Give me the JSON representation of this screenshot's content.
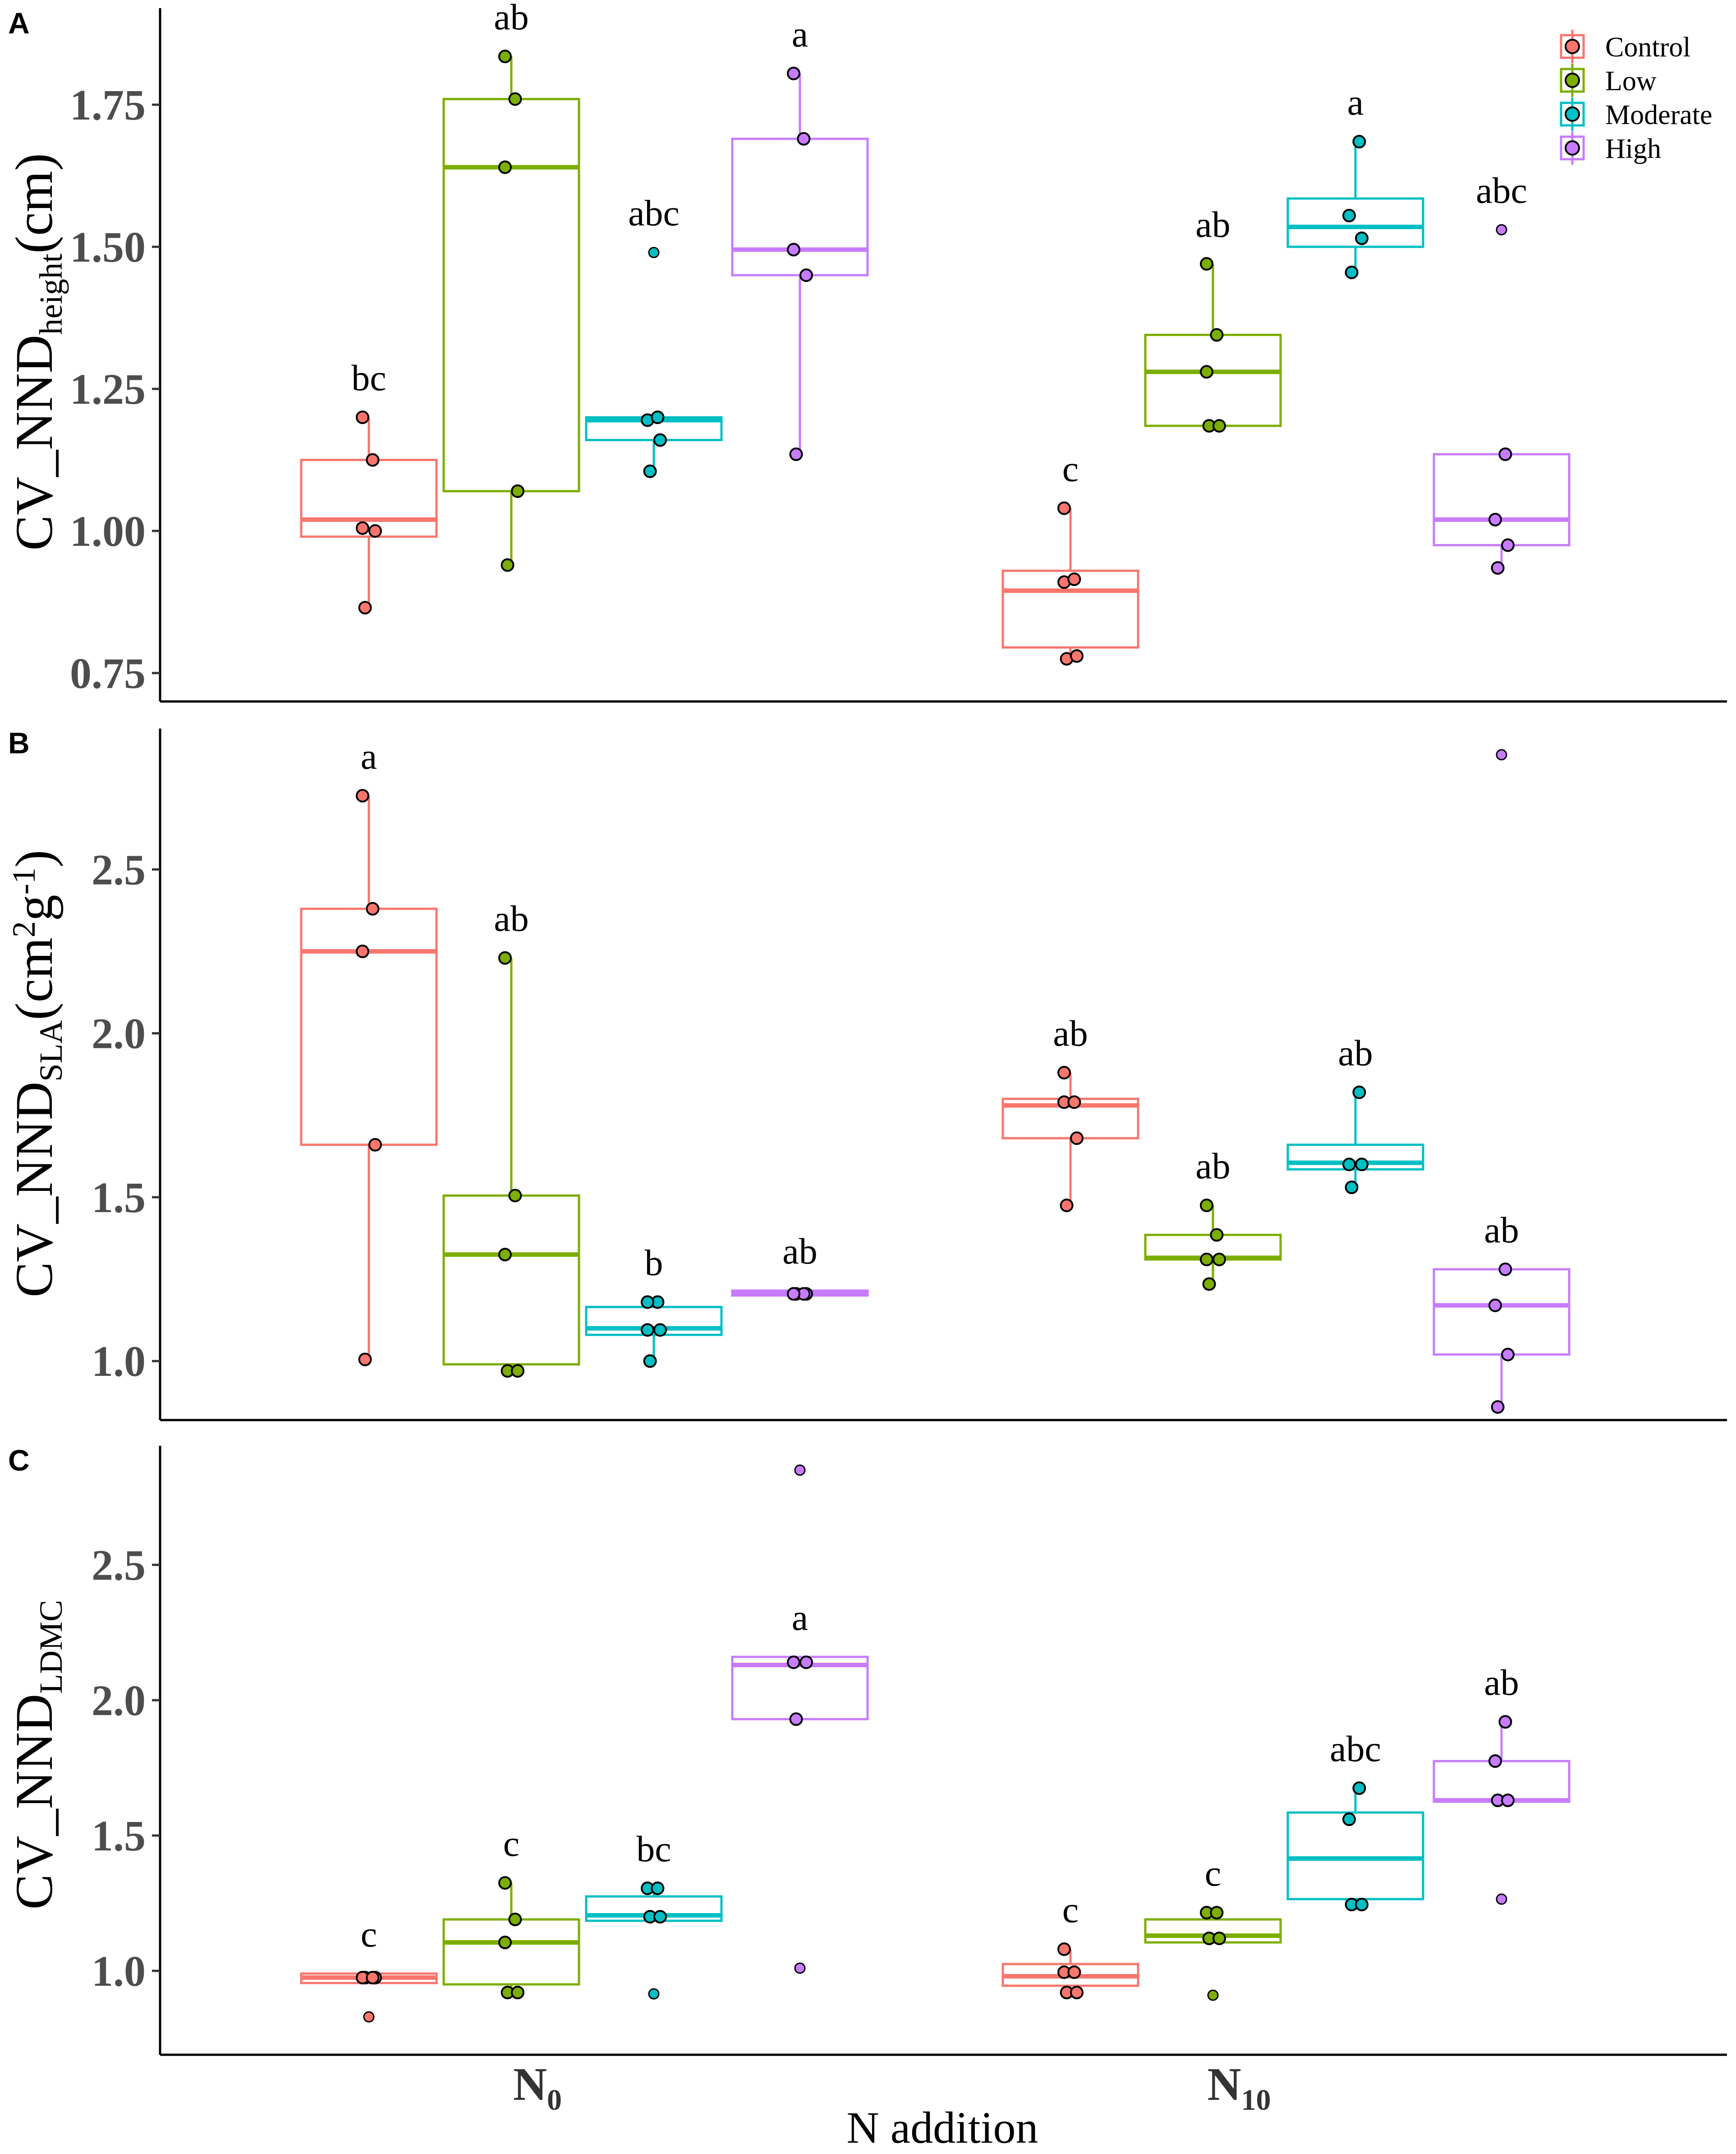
{
  "chart_data": {
    "type": "box",
    "x_title": "N addition",
    "groups": [
      {
        "base": "N",
        "sub": "0"
      },
      {
        "base": "N",
        "sub": "10"
      }
    ],
    "legend": [
      {
        "name": "Control",
        "color": "#F8766D"
      },
      {
        "name": "Low",
        "color": "#7CAE00"
      },
      {
        "name": "Moderate",
        "color": "#00BFC4"
      },
      {
        "name": "High",
        "color": "#C77CFF"
      }
    ],
    "panels": [
      {
        "id": "A",
        "ylabel_main": "CV_NND",
        "ylabel_sub": "height",
        "ylabel_unit": "(cm)",
        "ylim": [
          0.7,
          1.92
        ],
        "ticks": [
          0.75,
          1.0,
          1.25,
          1.5,
          1.75
        ],
        "tick_labels": [
          "0.75",
          "1.00",
          "1.25",
          "1.50",
          "1.75"
        ],
        "boxes": [
          {
            "group": 0,
            "series": 0,
            "q1": 0.99,
            "median": 1.02,
            "q3": 1.125,
            "wlo": 0.865,
            "whi": 1.2,
            "points": [
              0.865,
              1.0,
              1.005,
              1.125,
              1.2
            ],
            "outliers": [],
            "letter": "bc"
          },
          {
            "group": 0,
            "series": 1,
            "q1": 1.07,
            "median": 1.64,
            "q3": 1.76,
            "wlo": 0.94,
            "whi": 1.835,
            "points": [
              0.94,
              1.07,
              1.64,
              1.76,
              1.835
            ],
            "outliers": [],
            "letter": "ab"
          },
          {
            "group": 0,
            "series": 2,
            "q1": 1.16,
            "median": 1.195,
            "q3": 1.2,
            "wlo": 1.105,
            "whi": 1.2,
            "points": [
              1.105,
              1.16,
              1.195,
              1.2
            ],
            "outliers": [
              1.49
            ],
            "letter": "abc"
          },
          {
            "group": 0,
            "series": 3,
            "q1": 1.45,
            "median": 1.495,
            "q3": 1.69,
            "wlo": 1.135,
            "whi": 1.805,
            "points": [
              1.135,
              1.45,
              1.495,
              1.69,
              1.805
            ],
            "outliers": [],
            "letter": "a"
          },
          {
            "group": 1,
            "series": 0,
            "q1": 0.795,
            "median": 0.895,
            "q3": 0.93,
            "wlo": 0.775,
            "whi": 1.04,
            "points": [
              0.775,
              0.78,
              0.91,
              0.915,
              1.04
            ],
            "outliers": [],
            "letter": "c"
          },
          {
            "group": 1,
            "series": 1,
            "q1": 1.185,
            "median": 1.28,
            "q3": 1.345,
            "wlo": 1.185,
            "whi": 1.47,
            "points": [
              1.185,
              1.185,
              1.28,
              1.345,
              1.47
            ],
            "outliers": [],
            "letter": "ab"
          },
          {
            "group": 1,
            "series": 2,
            "q1": 1.5,
            "median": 1.535,
            "q3": 1.585,
            "wlo": 1.455,
            "whi": 1.685,
            "points": [
              1.455,
              1.515,
              1.555,
              1.685
            ],
            "outliers": [],
            "letter": "a"
          },
          {
            "group": 1,
            "series": 3,
            "q1": 0.975,
            "median": 1.02,
            "q3": 1.135,
            "wlo": 0.935,
            "whi": 1.135,
            "points": [
              0.935,
              0.975,
              1.02,
              1.135
            ],
            "outliers": [
              1.53
            ],
            "letter": "abc"
          }
        ]
      },
      {
        "id": "B",
        "ylabel_main": "CV_NND",
        "ylabel_sub": "SLA",
        "ylabel_unit": "(cm²g⁻¹)",
        "ylim": [
          0.82,
          2.93
        ],
        "ticks": [
          1.0,
          1.5,
          2.0,
          2.5
        ],
        "tick_labels": [
          "1.0",
          "1.5",
          "2.0",
          "2.5"
        ],
        "boxes": [
          {
            "group": 0,
            "series": 0,
            "q1": 1.66,
            "median": 2.25,
            "q3": 2.38,
            "wlo": 1.005,
            "whi": 2.725,
            "points": [
              1.005,
              1.66,
              2.25,
              2.38,
              2.725
            ],
            "outliers": [],
            "letter": "a"
          },
          {
            "group": 0,
            "series": 1,
            "q1": 0.99,
            "median": 1.325,
            "q3": 1.505,
            "wlo": 0.97,
            "whi": 2.23,
            "points": [
              0.97,
              0.97,
              1.325,
              1.505,
              2.23
            ],
            "outliers": [],
            "letter": "ab"
          },
          {
            "group": 0,
            "series": 2,
            "q1": 1.08,
            "median": 1.1,
            "q3": 1.165,
            "wlo": 1.0,
            "whi": 1.18,
            "points": [
              1.0,
              1.095,
              1.095,
              1.18,
              1.18
            ],
            "outliers": [],
            "letter": "b"
          },
          {
            "group": 0,
            "series": 3,
            "q1": 1.2,
            "median": 1.205,
            "q3": 1.215,
            "wlo": 1.2,
            "whi": 1.215,
            "points": [
              1.205,
              1.205,
              1.205,
              1.205,
              1.205
            ],
            "outliers": [],
            "letter": "ab"
          },
          {
            "group": 1,
            "series": 0,
            "q1": 1.68,
            "median": 1.78,
            "q3": 1.8,
            "wlo": 1.475,
            "whi": 1.88,
            "points": [
              1.475,
              1.68,
              1.79,
              1.79,
              1.88
            ],
            "outliers": [],
            "letter": "ab"
          },
          {
            "group": 1,
            "series": 1,
            "q1": 1.31,
            "median": 1.315,
            "q3": 1.385,
            "wlo": 1.235,
            "whi": 1.475,
            "points": [
              1.235,
              1.31,
              1.31,
              1.385,
              1.475
            ],
            "outliers": [],
            "letter": "ab"
          },
          {
            "group": 1,
            "series": 2,
            "q1": 1.585,
            "median": 1.605,
            "q3": 1.66,
            "wlo": 1.53,
            "whi": 1.82,
            "points": [
              1.53,
              1.6,
              1.6,
              1.82
            ],
            "outliers": [],
            "letter": "ab"
          },
          {
            "group": 1,
            "series": 3,
            "q1": 1.02,
            "median": 1.17,
            "q3": 1.28,
            "wlo": 0.86,
            "whi": 1.28,
            "points": [
              0.86,
              1.02,
              1.17,
              1.28
            ],
            "outliers": [
              2.85
            ],
            "letter": "ab"
          }
        ]
      },
      {
        "id": "C",
        "ylabel_main": "CV_NND",
        "ylabel_sub": "LDMC",
        "ylabel_unit": "",
        "ylim": [
          0.69,
          2.94
        ],
        "ticks": [
          1.0,
          1.5,
          2.0,
          2.5
        ],
        "tick_labels": [
          "1.0",
          "1.5",
          "2.0",
          "2.5"
        ],
        "boxes": [
          {
            "group": 0,
            "series": 0,
            "q1": 0.955,
            "median": 0.975,
            "q3": 0.99,
            "wlo": 0.955,
            "whi": 0.99,
            "points": [
              0.975,
              0.975,
              0.975,
              0.975
            ],
            "outliers": [
              0.83
            ],
            "letter": "c"
          },
          {
            "group": 0,
            "series": 1,
            "q1": 0.95,
            "median": 1.105,
            "q3": 1.19,
            "wlo": 0.92,
            "whi": 1.325,
            "points": [
              0.92,
              0.92,
              1.105,
              1.19,
              1.325
            ],
            "outliers": [],
            "letter": "c"
          },
          {
            "group": 0,
            "series": 2,
            "q1": 1.185,
            "median": 1.205,
            "q3": 1.275,
            "wlo": 1.185,
            "whi": 1.305,
            "points": [
              1.2,
              1.2,
              1.305,
              1.305
            ],
            "outliers": [
              0.915
            ],
            "letter": "bc"
          },
          {
            "group": 0,
            "series": 3,
            "q1": 1.93,
            "median": 2.13,
            "q3": 2.16,
            "wlo": 1.93,
            "whi": 2.16,
            "points": [
              1.93,
              2.14,
              2.14
            ],
            "outliers": [
              1.01,
              2.85
            ],
            "letter": "a"
          },
          {
            "group": 1,
            "series": 0,
            "q1": 0.945,
            "median": 0.98,
            "q3": 1.025,
            "wlo": 0.92,
            "whi": 1.08,
            "points": [
              0.92,
              0.92,
              0.995,
              0.995,
              1.08
            ],
            "outliers": [],
            "letter": "c"
          },
          {
            "group": 1,
            "series": 1,
            "q1": 1.105,
            "median": 1.13,
            "q3": 1.19,
            "wlo": 1.105,
            "whi": 1.215,
            "points": [
              1.12,
              1.12,
              1.215,
              1.215
            ],
            "outliers": [
              0.91
            ],
            "letter": "c"
          },
          {
            "group": 1,
            "series": 2,
            "q1": 1.265,
            "median": 1.415,
            "q3": 1.585,
            "wlo": 1.245,
            "whi": 1.675,
            "points": [
              1.245,
              1.245,
              1.56,
              1.675
            ],
            "outliers": [],
            "letter": "abc"
          },
          {
            "group": 1,
            "series": 3,
            "q1": 1.625,
            "median": 1.63,
            "q3": 1.775,
            "wlo": 1.625,
            "whi": 1.92,
            "points": [
              1.63,
              1.63,
              1.775,
              1.92
            ],
            "outliers": [
              1.265
            ],
            "letter": "ab"
          }
        ]
      }
    ]
  }
}
